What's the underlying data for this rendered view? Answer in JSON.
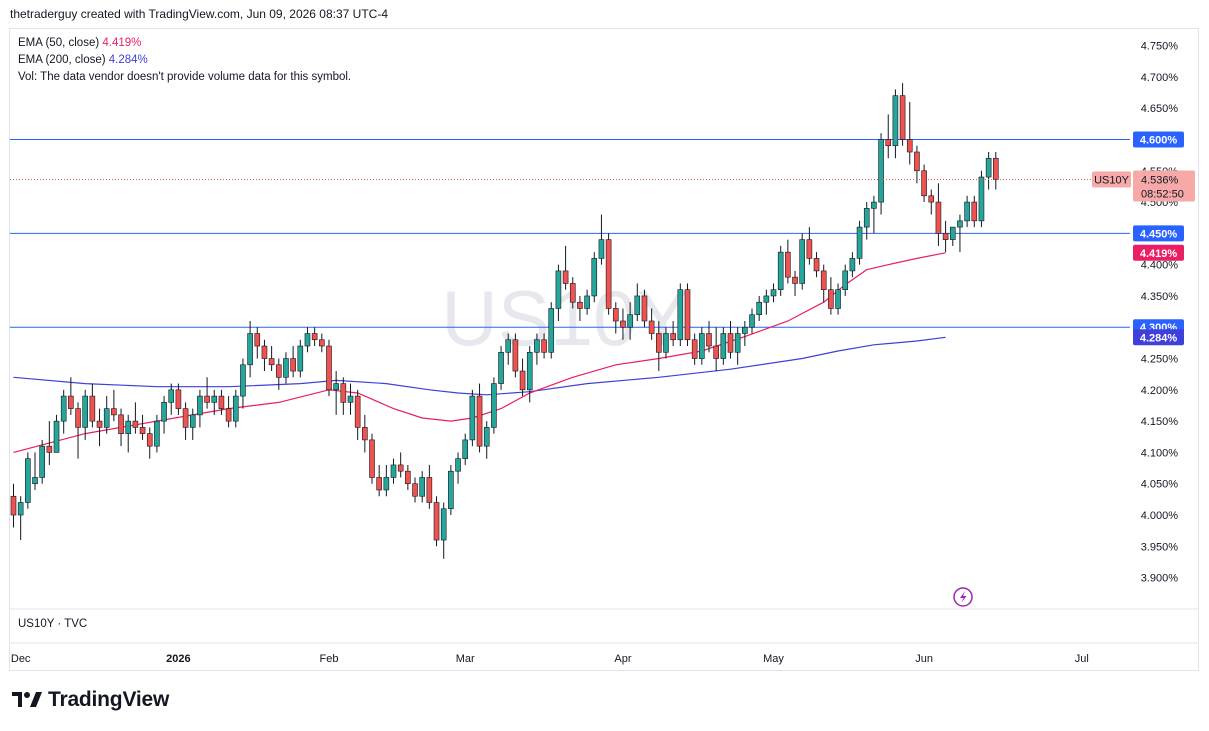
{
  "header": {
    "text": "thetraderguy created with TradingView.com, Jun 09, 2026 08:37 UTC-4"
  },
  "legend": {
    "ema50": {
      "label": "EMA (50, close)",
      "value": "4.419%",
      "color": "#e91e63"
    },
    "ema200": {
      "label": "EMA (200, close)",
      "value": "4.284%",
      "color": "#3f3fd9"
    },
    "vol": {
      "text": "Vol: The data vendor doesn't provide volume data for this symbol."
    }
  },
  "symbol_footer": "US10Y · TVC",
  "watermark": "US10Y",
  "brand": "TradingView",
  "colors": {
    "up": "#26a69a",
    "down": "#ef5350",
    "hline": "#2962ff",
    "ema50": "#e91e63",
    "ema200": "#3f3fd9"
  },
  "price_tag": {
    "symbol": "US10Y",
    "price": "4.536%",
    "countdown": "08:52:50"
  },
  "hlines": [
    {
      "value": 4.6,
      "label": "4.600%"
    },
    {
      "value": 4.45,
      "label": "4.450%"
    },
    {
      "value": 4.3,
      "label": "4.300%"
    }
  ],
  "ema_tags": [
    {
      "value": 4.419,
      "label": "4.419%",
      "color": "#e91e63"
    },
    {
      "value": 4.284,
      "label": "4.284%",
      "color": "#3f3fd9"
    }
  ],
  "chart_data": {
    "type": "candlestick",
    "ylim": [
      3.875,
      4.775
    ],
    "y_ticks": [
      "3.900%",
      "3.950%",
      "4.000%",
      "4.050%",
      "4.100%",
      "4.150%",
      "4.200%",
      "4.250%",
      "4.300%",
      "4.350%",
      "4.400%",
      "4.450%",
      "4.500%",
      "4.550%",
      "4.600%",
      "4.650%",
      "4.700%",
      "4.750%"
    ],
    "x_labels": [
      {
        "label": "Dec",
        "index": 1,
        "bold": false
      },
      {
        "label": "2026",
        "index": 23,
        "bold": true
      },
      {
        "label": "Feb",
        "index": 44,
        "bold": false
      },
      {
        "label": "Mar",
        "index": 63,
        "bold": false
      },
      {
        "label": "Apr",
        "index": 85,
        "bold": false
      },
      {
        "label": "May",
        "index": 106,
        "bold": false
      },
      {
        "label": "Jun",
        "index": 127,
        "bold": false
      },
      {
        "label": "Jul",
        "index": 149,
        "bold": false
      }
    ],
    "candles": [
      [
        4.03,
        4.05,
        3.98,
        4.0
      ],
      [
        4.0,
        4.03,
        3.96,
        4.02
      ],
      [
        4.02,
        4.1,
        4.01,
        4.09
      ],
      [
        4.05,
        4.1,
        4.04,
        4.06
      ],
      [
        4.06,
        4.12,
        4.05,
        4.11
      ],
      [
        4.11,
        4.15,
        4.08,
        4.1
      ],
      [
        4.1,
        4.16,
        4.1,
        4.15
      ],
      [
        4.15,
        4.2,
        4.13,
        4.19
      ],
      [
        4.19,
        4.22,
        4.16,
        4.17
      ],
      [
        4.17,
        4.18,
        4.09,
        4.14
      ],
      [
        4.14,
        4.2,
        4.12,
        4.19
      ],
      [
        4.19,
        4.21,
        4.14,
        4.15
      ],
      [
        4.15,
        4.17,
        4.11,
        4.14
      ],
      [
        4.14,
        4.19,
        4.13,
        4.17
      ],
      [
        4.17,
        4.2,
        4.15,
        4.16
      ],
      [
        4.16,
        4.17,
        4.11,
        4.13
      ],
      [
        4.13,
        4.16,
        4.1,
        4.15
      ],
      [
        4.15,
        4.18,
        4.13,
        4.14
      ],
      [
        4.14,
        4.16,
        4.12,
        4.13
      ],
      [
        4.13,
        4.14,
        4.09,
        4.11
      ],
      [
        4.11,
        4.16,
        4.1,
        4.15
      ],
      [
        4.15,
        4.19,
        4.13,
        4.18
      ],
      [
        4.18,
        4.21,
        4.16,
        4.2
      ],
      [
        4.2,
        4.21,
        4.16,
        4.17
      ],
      [
        4.17,
        4.18,
        4.12,
        4.14
      ],
      [
        4.14,
        4.17,
        4.12,
        4.16
      ],
      [
        4.16,
        4.2,
        4.14,
        4.19
      ],
      [
        4.19,
        4.22,
        4.17,
        4.18
      ],
      [
        4.18,
        4.2,
        4.16,
        4.19
      ],
      [
        4.19,
        4.2,
        4.16,
        4.17
      ],
      [
        4.17,
        4.19,
        4.14,
        4.15
      ],
      [
        4.15,
        4.2,
        4.14,
        4.19
      ],
      [
        4.19,
        4.25,
        4.17,
        4.24
      ],
      [
        4.24,
        4.31,
        4.22,
        4.29
      ],
      [
        4.29,
        4.3,
        4.25,
        4.27
      ],
      [
        4.27,
        4.28,
        4.23,
        4.25
      ],
      [
        4.25,
        4.27,
        4.23,
        4.24
      ],
      [
        4.24,
        4.25,
        4.2,
        4.22
      ],
      [
        4.22,
        4.26,
        4.21,
        4.25
      ],
      [
        4.25,
        4.27,
        4.22,
        4.23
      ],
      [
        4.23,
        4.28,
        4.22,
        4.27
      ],
      [
        4.27,
        4.3,
        4.26,
        4.29
      ],
      [
        4.29,
        4.3,
        4.27,
        4.28
      ],
      [
        4.28,
        4.29,
        4.26,
        4.27
      ],
      [
        4.27,
        4.28,
        4.19,
        4.2
      ],
      [
        4.2,
        4.23,
        4.16,
        4.21
      ],
      [
        4.21,
        4.22,
        4.16,
        4.18
      ],
      [
        4.18,
        4.21,
        4.16,
        4.19
      ],
      [
        4.19,
        4.2,
        4.12,
        4.14
      ],
      [
        4.14,
        4.16,
        4.1,
        4.12
      ],
      [
        4.12,
        4.13,
        4.05,
        4.06
      ],
      [
        4.06,
        4.08,
        4.03,
        4.04
      ],
      [
        4.04,
        4.08,
        4.03,
        4.06
      ],
      [
        4.06,
        4.09,
        4.05,
        4.08
      ],
      [
        4.08,
        4.1,
        4.06,
        4.07
      ],
      [
        4.07,
        4.08,
        4.04,
        4.05
      ],
      [
        4.05,
        4.06,
        4.02,
        4.03
      ],
      [
        4.03,
        4.07,
        4.02,
        4.06
      ],
      [
        4.06,
        4.08,
        4.01,
        4.02
      ],
      [
        4.02,
        4.03,
        3.95,
        3.96
      ],
      [
        3.96,
        4.02,
        3.93,
        4.01
      ],
      [
        4.01,
        4.08,
        4.0,
        4.07
      ],
      [
        4.07,
        4.1,
        4.05,
        4.09
      ],
      [
        4.09,
        4.13,
        4.08,
        4.12
      ],
      [
        4.12,
        4.2,
        4.11,
        4.19
      ],
      [
        4.19,
        4.21,
        4.1,
        4.11
      ],
      [
        4.11,
        4.15,
        4.09,
        4.14
      ],
      [
        4.14,
        4.22,
        4.13,
        4.21
      ],
      [
        4.21,
        4.27,
        4.2,
        4.26
      ],
      [
        4.26,
        4.29,
        4.24,
        4.28
      ],
      [
        4.28,
        4.29,
        4.22,
        4.23
      ],
      [
        4.23,
        4.25,
        4.19,
        4.2
      ],
      [
        4.2,
        4.27,
        4.18,
        4.26
      ],
      [
        4.26,
        4.29,
        4.24,
        4.28
      ],
      [
        4.28,
        4.29,
        4.25,
        4.26
      ],
      [
        4.26,
        4.34,
        4.25,
        4.33
      ],
      [
        4.33,
        4.4,
        4.31,
        4.39
      ],
      [
        4.39,
        4.43,
        4.36,
        4.37
      ],
      [
        4.37,
        4.38,
        4.33,
        4.34
      ],
      [
        4.34,
        4.35,
        4.31,
        4.33
      ],
      [
        4.33,
        4.36,
        4.32,
        4.35
      ],
      [
        4.35,
        4.42,
        4.34,
        4.41
      ],
      [
        4.41,
        4.48,
        4.4,
        4.44
      ],
      [
        4.44,
        4.45,
        4.32,
        4.33
      ],
      [
        4.33,
        4.34,
        4.29,
        4.31
      ],
      [
        4.31,
        4.33,
        4.28,
        4.3
      ],
      [
        4.3,
        4.34,
        4.28,
        4.32
      ],
      [
        4.32,
        4.37,
        4.31,
        4.35
      ],
      [
        4.35,
        4.36,
        4.3,
        4.31
      ],
      [
        4.31,
        4.33,
        4.28,
        4.29
      ],
      [
        4.29,
        4.31,
        4.23,
        4.26
      ],
      [
        4.26,
        4.3,
        4.25,
        4.29
      ],
      [
        4.29,
        4.31,
        4.27,
        4.28
      ],
      [
        4.28,
        4.37,
        4.27,
        4.36
      ],
      [
        4.36,
        4.37,
        4.27,
        4.28
      ],
      [
        4.28,
        4.29,
        4.24,
        4.25
      ],
      [
        4.25,
        4.3,
        4.24,
        4.29
      ],
      [
        4.29,
        4.31,
        4.26,
        4.27
      ],
      [
        4.27,
        4.3,
        4.23,
        4.25
      ],
      [
        4.25,
        4.3,
        4.24,
        4.29
      ],
      [
        4.29,
        4.31,
        4.25,
        4.26
      ],
      [
        4.26,
        4.3,
        4.24,
        4.29
      ],
      [
        4.29,
        4.31,
        4.27,
        4.3
      ],
      [
        4.3,
        4.33,
        4.29,
        4.32
      ],
      [
        4.32,
        4.35,
        4.31,
        4.34
      ],
      [
        4.34,
        4.36,
        4.32,
        4.35
      ],
      [
        4.35,
        4.37,
        4.34,
        4.36
      ],
      [
        4.36,
        4.43,
        4.35,
        4.42
      ],
      [
        4.42,
        4.44,
        4.37,
        4.38
      ],
      [
        4.38,
        4.39,
        4.35,
        4.37
      ],
      [
        4.37,
        4.45,
        4.36,
        4.44
      ],
      [
        4.44,
        4.46,
        4.4,
        4.41
      ],
      [
        4.41,
        4.42,
        4.38,
        4.39
      ],
      [
        4.39,
        4.4,
        4.34,
        4.36
      ],
      [
        4.36,
        4.38,
        4.32,
        4.33
      ],
      [
        4.33,
        4.37,
        4.32,
        4.36
      ],
      [
        4.36,
        4.4,
        4.35,
        4.39
      ],
      [
        4.39,
        4.42,
        4.38,
        4.41
      ],
      [
        4.41,
        4.47,
        4.4,
        4.46
      ],
      [
        4.46,
        4.5,
        4.44,
        4.49
      ],
      [
        4.49,
        4.51,
        4.45,
        4.5
      ],
      [
        4.5,
        4.61,
        4.48,
        4.6
      ],
      [
        4.6,
        4.64,
        4.57,
        4.59
      ],
      [
        4.59,
        4.68,
        4.57,
        4.67
      ],
      [
        4.67,
        4.69,
        4.59,
        4.6
      ],
      [
        4.6,
        4.66,
        4.56,
        4.58
      ],
      [
        4.58,
        4.59,
        4.53,
        4.55
      ],
      [
        4.55,
        4.56,
        4.5,
        4.51
      ],
      [
        4.51,
        4.52,
        4.48,
        4.5
      ],
      [
        4.5,
        4.53,
        4.43,
        4.45
      ],
      [
        4.45,
        4.47,
        4.42,
        4.44
      ],
      [
        4.44,
        4.46,
        4.43,
        4.46
      ],
      [
        4.46,
        4.48,
        4.42,
        4.47
      ],
      [
        4.47,
        4.51,
        4.46,
        4.5
      ],
      [
        4.5,
        4.51,
        4.46,
        4.47
      ],
      [
        4.47,
        4.55,
        4.46,
        4.54
      ],
      [
        4.54,
        4.58,
        4.52,
        4.57
      ],
      [
        4.57,
        4.58,
        4.52,
        4.536
      ]
    ],
    "ema50_points": [
      [
        0,
        4.1
      ],
      [
        10,
        4.13
      ],
      [
        20,
        4.15
      ],
      [
        30,
        4.17
      ],
      [
        37,
        4.18
      ],
      [
        44,
        4.2
      ],
      [
        48,
        4.195
      ],
      [
        53,
        4.17
      ],
      [
        57,
        4.155
      ],
      [
        61,
        4.15
      ],
      [
        64,
        4.155
      ],
      [
        68,
        4.17
      ],
      [
        72,
        4.195
      ],
      [
        78,
        4.22
      ],
      [
        84,
        4.24
      ],
      [
        90,
        4.25
      ],
      [
        96,
        4.262
      ],
      [
        102,
        4.285
      ],
      [
        108,
        4.31
      ],
      [
        113,
        4.34
      ],
      [
        116,
        4.368
      ],
      [
        119,
        4.392
      ],
      [
        122,
        4.4
      ],
      [
        126,
        4.41
      ],
      [
        130,
        4.419
      ]
    ],
    "ema200_points": [
      [
        0,
        4.22
      ],
      [
        10,
        4.21
      ],
      [
        20,
        4.205
      ],
      [
        30,
        4.205
      ],
      [
        40,
        4.21
      ],
      [
        45,
        4.215
      ],
      [
        52,
        4.21
      ],
      [
        58,
        4.2
      ],
      [
        62,
        4.195
      ],
      [
        66,
        4.192
      ],
      [
        72,
        4.197
      ],
      [
        80,
        4.21
      ],
      [
        90,
        4.22
      ],
      [
        100,
        4.233
      ],
      [
        110,
        4.25
      ],
      [
        115,
        4.262
      ],
      [
        120,
        4.272
      ],
      [
        126,
        4.278
      ],
      [
        130,
        4.284
      ]
    ]
  }
}
